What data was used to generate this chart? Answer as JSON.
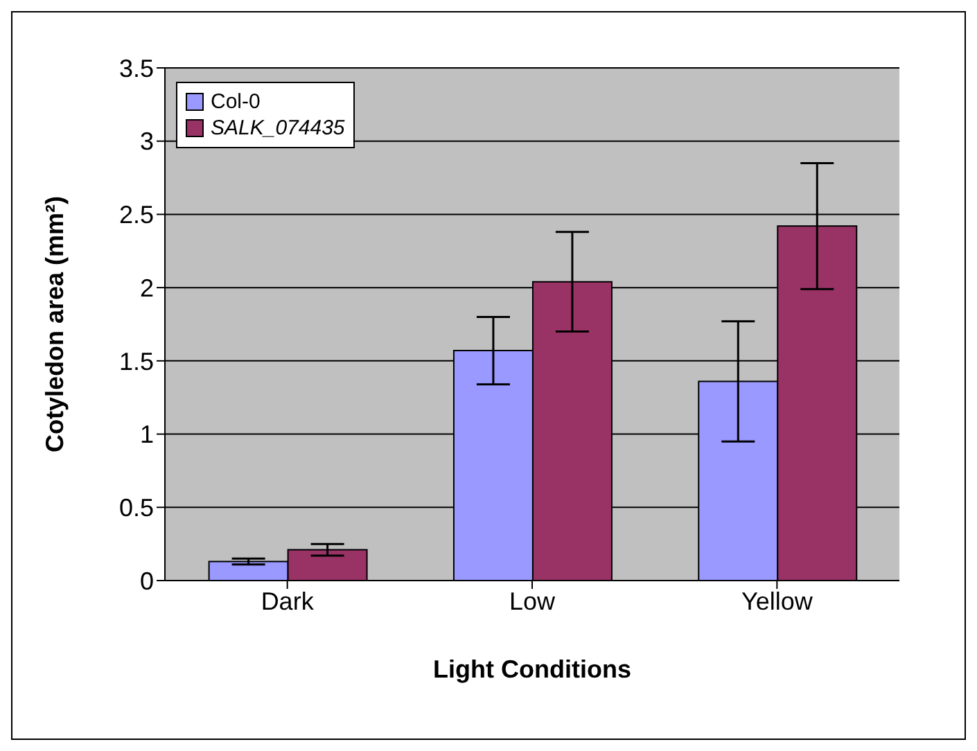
{
  "chart_data": {
    "type": "bar",
    "xlabel": "Light Conditions",
    "ylabel": "Cotyledon area (mm²)",
    "categories": [
      "Dark",
      "Low",
      "Yellow"
    ],
    "series": [
      {
        "name": "Col-0",
        "color": "#9999ff",
        "values": [
          0.13,
          1.57,
          1.36
        ],
        "errors": [
          0.02,
          0.23,
          0.41
        ]
      },
      {
        "name": "SALK_074435",
        "color": "#993366",
        "values": [
          0.21,
          2.04,
          2.42
        ],
        "errors": [
          0.04,
          0.34,
          0.43
        ]
      }
    ],
    "ylim": [
      0,
      3.5
    ],
    "yticks": [
      0,
      0.5,
      1,
      1.5,
      2,
      2.5,
      3,
      3.5
    ],
    "grid": "y",
    "legend": "top left"
  }
}
